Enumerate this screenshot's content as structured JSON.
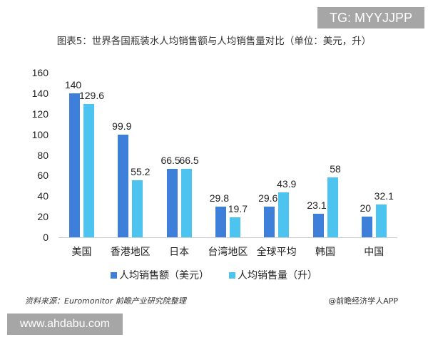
{
  "overlay": {
    "tg_label": "TG: MYYJJPP",
    "website": "www.ahdabu.com"
  },
  "footer": {
    "source": "资料来源：Euromonitor 前瞻产业研究院整理",
    "credit": "@前瞻经济学人APP"
  },
  "colors": {
    "series1": "#3e7fd9",
    "series2": "#4dc3f0"
  },
  "chart_data": {
    "type": "bar",
    "title": "图表5：世界各国瓶装水人均销售额与人均销售量对比（单位：美元，升）",
    "categories": [
      "美国",
      "香港地区",
      "日本",
      "台湾地区",
      "全球平均",
      "韩国",
      "中国"
    ],
    "series": [
      {
        "name": "人均销售额（美元）",
        "values": [
          140,
          99.9,
          66.5,
          29.8,
          29.6,
          23.1,
          20
        ]
      },
      {
        "name": "人均销售量（升）",
        "values": [
          129.6,
          55.2,
          66.5,
          19.7,
          43.9,
          58,
          32.1
        ]
      }
    ],
    "xlabel": "",
    "ylabel": "",
    "ylim": [
      0,
      160
    ],
    "yticks": [
      0,
      20,
      40,
      60,
      80,
      100,
      120,
      140,
      160
    ],
    "grid": false,
    "legend_position": "bottom"
  }
}
